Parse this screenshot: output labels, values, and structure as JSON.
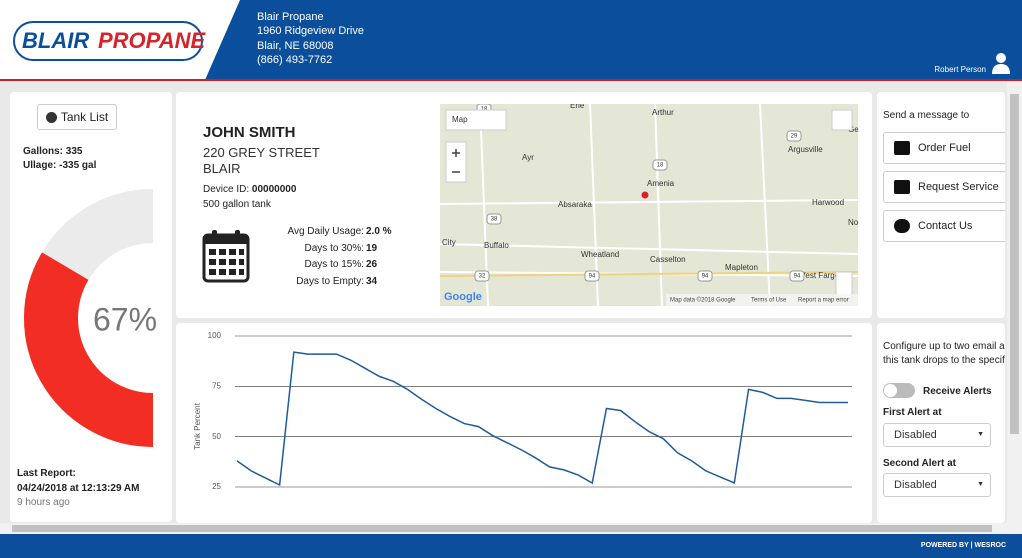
{
  "header": {
    "logo_left": "BLAIR",
    "logo_right": "PROPANE",
    "company": "Blair Propane",
    "address_lines": [
      "1960 Ridgeview Drive",
      "Blair, NE 68008",
      "(866) 493-7762"
    ],
    "user": "Robert Person"
  },
  "tank": {
    "button": "Tank List",
    "gallons_label": "Gallons:",
    "gallons": "335",
    "ullage_label": "Ullage:",
    "ullage": "-335 gal",
    "gauge": {
      "value": 67,
      "value_label": "67%"
    },
    "last_report_label": "Last Report:",
    "last_report": "04/24/2018 at 12:13:29 AM",
    "ago": "9 hours ago"
  },
  "customer": {
    "name": "JOHN SMITH",
    "street": "220 GREY STREET",
    "city": "BLAIR",
    "device_label": "Device ID:",
    "device_id": "00000000",
    "tank_size": "500 gallon tank",
    "stats": [
      [
        "Avg Daily Usage:",
        "2.0 %"
      ],
      [
        "Days to 30%:",
        "19"
      ],
      [
        "Days to 15%:",
        "26"
      ],
      [
        "Days to Empty:",
        "34"
      ]
    ]
  },
  "map": {
    "type_select": "Map",
    "labels": [
      "Erie",
      "Arthur",
      "Ayr",
      "Argusville",
      "Amenia",
      "Absaraka",
      "Harwood",
      "City",
      "Buffalo",
      "Wheatland",
      "Casselton",
      "Mapleton",
      "West Fargo",
      "Nor",
      "Ge"
    ],
    "roads": [
      "18",
      "29",
      "18",
      "38",
      "32",
      "94",
      "94",
      "94"
    ],
    "logo": "Google",
    "attribution": "Map data ©2018 Google",
    "terms": "Terms of Use",
    "report": "Report a map error"
  },
  "chart_data": {
    "type": "line",
    "ylabel": "Tank Percent",
    "color": "#1f5b99",
    "ylim": [
      25,
      100
    ],
    "yticks": [
      25,
      50,
      75,
      100
    ],
    "grid": true,
    "values": [
      38,
      33,
      29.5,
      26,
      92,
      91,
      91,
      91,
      88,
      84,
      80,
      77.5,
      73.5,
      68.5,
      64,
      60,
      56.5,
      55,
      50.5,
      47,
      43.5,
      39.5,
      35,
      33.5,
      31,
      27,
      64,
      63,
      57.5,
      52.5,
      49,
      42,
      38,
      33,
      30,
      27,
      73.5,
      72,
      69,
      69,
      68,
      67,
      67,
      67
    ]
  },
  "messages": {
    "title": "Send a message to",
    "buttons": [
      "Order Fuel",
      "Request Service",
      "Contact Us"
    ]
  },
  "alerts": {
    "text_lines": [
      "Configure up to two email ale",
      "this tank drops to the specifi"
    ],
    "toggle": "Receive Alerts",
    "first_label": "First Alert at",
    "first_value": "Disabled",
    "second_label": "Second Alert at",
    "second_value": "Disabled"
  },
  "footer": {
    "powered": "POWERED BY",
    "brand": "WESROC"
  }
}
